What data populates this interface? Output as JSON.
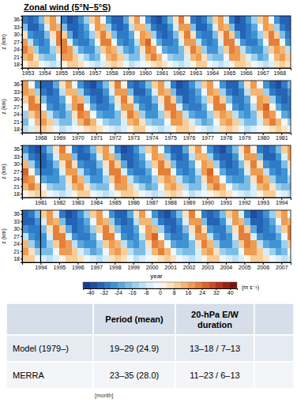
{
  "chart_data": {
    "type": "heatmap",
    "title": "Zonal wind (5°N–5°S)",
    "x_label": "year",
    "y_label": "z (km)",
    "x": [
      1952.67,
      1953,
      1953.33,
      1953.67,
      1954,
      1954.33,
      1954.67,
      1955,
      1955.33,
      1955.67,
      1956,
      1956.33,
      1956.67,
      1957,
      1957.33,
      1957.67,
      1958,
      1958.33,
      1958.67,
      1959,
      1959.33,
      1959.67,
      1960,
      1960.33,
      1960.67,
      1961,
      1961.33,
      1961.67,
      1962,
      1962.33,
      1962.67,
      1963,
      1963.33,
      1963.67,
      1964,
      1964.33,
      1964.67,
      1965,
      1965.33,
      1965.67,
      1966,
      1966.33,
      1966.67,
      1967,
      1967.33,
      1967.67,
      1968,
      1968.33,
      1968.67,
      1969,
      1969.33,
      1969.67,
      1970,
      1970.33,
      1970.67,
      1971,
      1971.33,
      1971.67,
      1972,
      1972.33,
      1972.67,
      1973,
      1973.33,
      1973.67,
      1974,
      1974.33,
      1974.67,
      1975,
      1975.33,
      1975.67,
      1976,
      1976.33,
      1976.67,
      1977,
      1977.33,
      1977.67,
      1978,
      1978.33,
      1978.67,
      1979,
      1979.33,
      1979.67,
      1980,
      1980.33,
      1980.67,
      1981,
      1981.33,
      1981.67,
      1982,
      1982.33,
      1982.67,
      1983,
      1983.33,
      1983.67,
      1984,
      1984.33,
      1984.67,
      1985,
      1985.33,
      1985.67,
      1986,
      1986.33,
      1986.67,
      1987,
      1987.33,
      1987.67,
      1988,
      1988.33,
      1988.67,
      1989,
      1989.33,
      1989.67,
      1990,
      1990.33,
      1990.67,
      1991,
      1991.33,
      1991.67,
      1992,
      1992.33,
      1992.67,
      1993,
      1993.33,
      1993.67,
      1994,
      1994.33,
      1994.67,
      1995,
      1995.33,
      1995.67,
      1996,
      1996.33,
      1996.67,
      1997,
      1997.33,
      1997.67,
      1998,
      1998.33,
      1998.67,
      1999,
      1999.33,
      1999.67,
      2000,
      2000.33,
      2000.67,
      2001,
      2001.33,
      2001.67,
      2002,
      2002.33,
      2002.67,
      2003,
      2003.33,
      2003.67,
      2004,
      2004.33,
      2004.67,
      2005,
      2005.33,
      2005.67,
      2006,
      2006.33,
      2006.67,
      2007,
      2007.33
    ],
    "y": [
      18,
      21,
      24,
      27,
      30,
      33,
      36
    ],
    "z": [
      [
        2,
        8,
        8,
        -2,
        -8,
        -10,
        -6,
        2,
        8,
        10,
        4,
        -2,
        -8,
        -12,
        -6,
        4,
        10,
        6,
        -4,
        -10,
        -8,
        -4,
        0,
        6,
        10,
        6,
        -2,
        -6,
        -10,
        -8,
        2,
        8,
        8,
        -2,
        -8,
        -10,
        -6,
        2,
        8,
        10,
        4,
        -2,
        -8,
        -12,
        -6,
        4,
        10,
        6,
        -4,
        -10,
        -8,
        -4,
        0,
        6,
        10,
        6,
        -2,
        -6,
        -10,
        -8,
        2,
        8,
        8,
        -2,
        -8,
        -10,
        -6,
        2,
        8,
        10,
        4,
        -2,
        -8,
        -12,
        -6,
        4,
        10,
        6,
        -4,
        -10,
        -8,
        -4,
        0,
        6,
        10,
        6,
        -2,
        -6,
        -10,
        -8,
        2,
        8,
        8,
        -2,
        -8,
        -10,
        -6,
        2,
        8,
        10,
        4,
        -2,
        -8,
        -12,
        -6,
        4,
        10,
        6,
        -4,
        -10,
        -8,
        -4,
        0,
        6,
        10,
        6,
        -2,
        -6,
        -10,
        -8,
        2,
        8,
        8,
        -2,
        -8,
        -10,
        -6,
        2,
        8,
        10,
        4,
        -2,
        -8,
        -12,
        -6,
        4,
        10,
        6,
        -4,
        -10,
        -8,
        -4,
        0,
        6,
        10,
        6,
        -2,
        -6,
        -10,
        -8,
        2,
        8,
        8,
        -2,
        -8,
        -10,
        -6,
        2,
        8,
        10,
        4,
        -2,
        -8,
        -12,
        -6
      ],
      [
        14,
        16,
        4,
        -14,
        -20,
        -18,
        -4,
        16,
        18,
        10,
        -8,
        -16,
        -22,
        -18,
        -2,
        12,
        18,
        8,
        -10,
        -18,
        -20,
        -6,
        14,
        20,
        14,
        -4,
        -14,
        -20,
        -20,
        -6,
        14,
        16,
        4,
        -14,
        -20,
        -18,
        -4,
        16,
        18,
        10,
        -8,
        -16,
        -22,
        -18,
        -2,
        12,
        18,
        8,
        -10,
        -18,
        -20,
        -6,
        14,
        20,
        14,
        -4,
        -14,
        -20,
        -20,
        -6,
        14,
        16,
        4,
        -14,
        -20,
        -18,
        -4,
        16,
        18,
        10,
        -8,
        -16,
        -22,
        -18,
        -2,
        12,
        18,
        8,
        -10,
        -18,
        -20,
        -6,
        14,
        20,
        14,
        -4,
        -14,
        -20,
        -20,
        -6,
        14,
        16,
        4,
        -14,
        -20,
        -18,
        -4,
        16,
        18,
        10,
        -8,
        -16,
        -22,
        -18,
        -2,
        12,
        18,
        8,
        -10,
        -18,
        -20,
        -6,
        14,
        20,
        14,
        -4,
        -14,
        -20,
        -20,
        -6,
        14,
        16,
        4,
        -14,
        -20,
        -18,
        -4,
        16,
        18,
        10,
        -8,
        -16,
        -22,
        -18,
        -2,
        12,
        18,
        8,
        -10,
        -18,
        -20,
        -6,
        14,
        20,
        14,
        -4,
        -14,
        -20,
        -20,
        -6,
        14,
        16,
        4,
        -14,
        -20,
        -18,
        -4,
        16,
        18,
        10,
        -8,
        -16,
        -22,
        -18,
        -2
      ],
      [
        20,
        12,
        -16,
        -26,
        -26,
        -16,
        8,
        22,
        16,
        -10,
        -24,
        -28,
        -26,
        -14,
        10,
        18,
        14,
        -12,
        -24,
        -28,
        -20,
        4,
        20,
        18,
        -4,
        -22,
        -26,
        -28,
        -18,
        6,
        20,
        12,
        -16,
        -26,
        -26,
        -16,
        8,
        22,
        16,
        -10,
        -24,
        -28,
        -26,
        -14,
        10,
        18,
        14,
        -12,
        -24,
        -28,
        -20,
        4,
        20,
        18,
        -4,
        -22,
        -26,
        -28,
        -18,
        6,
        20,
        12,
        -16,
        -26,
        -26,
        -16,
        8,
        22,
        16,
        -10,
        -24,
        -28,
        -26,
        -14,
        10,
        18,
        14,
        -12,
        -24,
        -28,
        -20,
        4,
        20,
        18,
        -4,
        -22,
        -26,
        -28,
        -18,
        6,
        20,
        12,
        -16,
        -26,
        -26,
        -16,
        8,
        22,
        16,
        -10,
        -24,
        -28,
        -26,
        -14,
        10,
        18,
        14,
        -12,
        -24,
        -28,
        -20,
        4,
        20,
        18,
        -4,
        -22,
        -26,
        -28,
        -18,
        6,
        20,
        12,
        -16,
        -26,
        -26,
        -16,
        8,
        22,
        16,
        -10,
        -24,
        -28,
        -26,
        -14,
        10,
        18,
        14,
        -12,
        -24,
        -28,
        -20,
        4,
        20,
        18,
        -4,
        -22,
        -26,
        -28,
        -18,
        6,
        20,
        12,
        -16,
        -26,
        -26,
        -16,
        8,
        22,
        16,
        -10,
        -24,
        -28,
        -26,
        -14,
        10
      ],
      [
        18,
        -10,
        -28,
        -30,
        -26,
        -8,
        20,
        22,
        -6,
        -26,
        -32,
        -30,
        -24,
        -4,
        22,
        20,
        -4,
        -26,
        -32,
        -28,
        -12,
        16,
        24,
        2,
        -22,
        -30,
        -32,
        -26,
        -8,
        18,
        18,
        -10,
        -28,
        -30,
        -26,
        -8,
        20,
        22,
        -6,
        -26,
        -32,
        -30,
        -24,
        -4,
        22,
        20,
        -4,
        -26,
        -32,
        -28,
        -12,
        16,
        24,
        2,
        -22,
        -30,
        -32,
        -26,
        -8,
        18,
        18,
        -10,
        -28,
        -30,
        -26,
        -8,
        20,
        22,
        -6,
        -26,
        -32,
        -30,
        -24,
        -4,
        22,
        20,
        -4,
        -26,
        -32,
        -28,
        -12,
        16,
        24,
        2,
        -22,
        -30,
        -32,
        -26,
        -8,
        18,
        18,
        -10,
        -28,
        -30,
        -26,
        -8,
        20,
        22,
        -6,
        -26,
        -32,
        -30,
        -24,
        -4,
        22,
        20,
        -4,
        -26,
        -32,
        -28,
        -12,
        16,
        24,
        2,
        -22,
        -30,
        -32,
        -26,
        -8,
        18,
        18,
        -10,
        -28,
        -30,
        -26,
        -8,
        20,
        22,
        -6,
        -26,
        -32,
        -30,
        -24,
        -4,
        22,
        20,
        -4,
        -26,
        -32,
        -28,
        -12,
        16,
        24,
        2,
        -22,
        -30,
        -32,
        -26,
        -8,
        18,
        18,
        -10,
        -28,
        -30,
        -26,
        -8,
        20,
        22,
        -6,
        -26,
        -32,
        -30,
        -24,
        -4,
        22
      ],
      [
        6,
        -26,
        -32,
        -30,
        -20,
        4,
        20,
        8,
        -22,
        -34,
        -32,
        -28,
        -16,
        8,
        22,
        10,
        -20,
        -30,
        -32,
        -24,
        0,
        18,
        12,
        -16,
        -32,
        -34,
        -30,
        -20,
        4,
        20,
        6,
        -26,
        -32,
        -30,
        -20,
        4,
        20,
        8,
        -22,
        -34,
        -32,
        -28,
        -16,
        8,
        22,
        10,
        -20,
        -30,
        -32,
        -24,
        0,
        18,
        12,
        -16,
        -32,
        -34,
        -30,
        -20,
        4,
        20,
        6,
        -26,
        -32,
        -30,
        -20,
        4,
        20,
        8,
        -22,
        -34,
        -32,
        -28,
        -16,
        8,
        22,
        10,
        -20,
        -30,
        -32,
        -24,
        0,
        18,
        12,
        -16,
        -32,
        -34,
        -30,
        -20,
        4,
        20,
        6,
        -26,
        -32,
        -30,
        -20,
        4,
        20,
        8,
        -22,
        -34,
        -32,
        -28,
        -16,
        8,
        22,
        10,
        -20,
        -30,
        -32,
        -24,
        0,
        18,
        12,
        -16,
        -32,
        -34,
        -30,
        -20,
        4,
        20,
        6,
        -26,
        -32,
        -30,
        -20,
        4,
        20,
        8,
        -22,
        -34,
        -32,
        -28,
        -16,
        8,
        22,
        10,
        -20,
        -30,
        -32,
        -24,
        0,
        18,
        12,
        -16,
        -32,
        -34,
        -30,
        -20,
        4,
        20,
        6,
        -26,
        -32,
        -30,
        -20,
        4,
        20,
        8,
        -22,
        -34,
        -32,
        -28,
        -16,
        8,
        22
      ],
      [
        -20,
        -34,
        -34,
        -28,
        -8,
        16,
        12,
        -18,
        -34,
        -36,
        -32,
        -24,
        -4,
        18,
        14,
        -16,
        -32,
        -36,
        -30,
        -12,
        14,
        14,
        -14,
        -30,
        -36,
        -34,
        -26,
        -8,
        16,
        16,
        -20,
        -34,
        -34,
        -28,
        -8,
        16,
        12,
        -18,
        -34,
        -36,
        -32,
        -24,
        -4,
        18,
        14,
        -16,
        -32,
        -36,
        -30,
        -12,
        14,
        14,
        -14,
        -30,
        -36,
        -34,
        -26,
        -8,
        16,
        16,
        -20,
        -34,
        -34,
        -28,
        -8,
        16,
        12,
        -18,
        -34,
        -36,
        -32,
        -24,
        -4,
        18,
        14,
        -16,
        -32,
        -36,
        -30,
        -12,
        14,
        14,
        -14,
        -30,
        -36,
        -34,
        -26,
        -8,
        16,
        16,
        -20,
        -34,
        -34,
        -28,
        -8,
        16,
        12,
        -18,
        -34,
        -36,
        -32,
        -24,
        -4,
        18,
        14,
        -16,
        -32,
        -36,
        -30,
        -12,
        14,
        14,
        -14,
        -30,
        -36,
        -34,
        -26,
        -8,
        16,
        16,
        -20,
        -34,
        -34,
        -28,
        -8,
        16,
        12,
        -18,
        -34,
        -36,
        -32,
        -24,
        -4,
        18,
        14,
        -16,
        -32,
        -36,
        -30,
        -12,
        14,
        14,
        -14,
        -30,
        -36,
        -34,
        -26,
        -8,
        16,
        16,
        -20,
        -34,
        -34,
        -28,
        -8,
        16,
        12,
        -18,
        -34,
        -36,
        -32,
        -24,
        -4,
        18,
        14
      ],
      [
        -30,
        -36,
        -32,
        -20,
        8,
        16,
        -6,
        -30,
        -38,
        -34,
        -28,
        -14,
        10,
        18,
        -4,
        -28,
        -36,
        -34,
        -24,
        4,
        18,
        -2,
        -26,
        -36,
        -38,
        -30,
        -18,
        6,
        20,
        0,
        -30,
        -36,
        -32,
        -20,
        8,
        16,
        -6,
        -30,
        -38,
        -34,
        -28,
        -14,
        10,
        18,
        -4,
        -28,
        -36,
        -34,
        -24,
        4,
        18,
        -2,
        -26,
        -36,
        -38,
        -30,
        -18,
        6,
        20,
        0,
        -30,
        -36,
        -32,
        -20,
        8,
        16,
        -6,
        -30,
        -38,
        -34,
        -28,
        -14,
        10,
        18,
        -4,
        -28,
        -36,
        -34,
        -24,
        4,
        18,
        -2,
        -26,
        -36,
        -38,
        -30,
        -18,
        6,
        20,
        0,
        -30,
        -36,
        -32,
        -20,
        8,
        16,
        -6,
        -30,
        -38,
        -34,
        -28,
        -14,
        10,
        18,
        -4,
        -28,
        -36,
        -34,
        -24,
        4,
        18,
        -2,
        -26,
        -36,
        -38,
        -30,
        -18,
        6,
        20,
        0,
        -30,
        -36,
        -32,
        -20,
        8,
        16,
        -6,
        -30,
        -38,
        -34,
        -28,
        -14,
        10,
        18,
        -4,
        -28,
        -36,
        -34,
        -24,
        4,
        18,
        -2,
        -26,
        -36,
        -38,
        -30,
        -18,
        6,
        20,
        0,
        -30,
        -36,
        -32,
        -20,
        8,
        16,
        -6,
        -30,
        -38,
        -34,
        -28,
        -14,
        10,
        18,
        -4
      ]
    ],
    "ylim": [
      16.5,
      37.5
    ],
    "yticks": [
      18,
      21,
      24,
      27,
      30,
      33,
      36
    ],
    "panels": [
      {
        "xlim": [
          1952.67,
          1968.67
        ],
        "xticks": [
          1953,
          1954,
          1955,
          1956,
          1957,
          1958,
          1959,
          1960,
          1961,
          1962,
          1963,
          1964,
          1965,
          1966,
          1967,
          1968
        ],
        "divider": 1955
      },
      {
        "xlim": [
          1967,
          1981.5
        ],
        "xticks": [
          1968,
          1969,
          1970,
          1971,
          1972,
          1973,
          1974,
          1975,
          1976,
          1977,
          1978,
          1979,
          1980,
          1981
        ],
        "divider": 1968
      },
      {
        "xlim": [
          1980,
          1994.5
        ],
        "xticks": [
          1981,
          1982,
          1983,
          1984,
          1985,
          1986,
          1987,
          1988,
          1989,
          1990,
          1991,
          1992,
          1993,
          1994
        ],
        "divider": 1981
      },
      {
        "xlim": [
          1993,
          2007.5
        ],
        "xticks": [
          1994,
          1995,
          1996,
          1997,
          1998,
          1999,
          2000,
          2001,
          2002,
          2003,
          2004,
          2005,
          2006,
          2007
        ],
        "divider": 1994
      }
    ],
    "colorbar": {
      "range": [
        -44,
        44
      ],
      "ticks": [
        -40,
        -32,
        -24,
        -16,
        -8,
        0,
        8,
        16,
        24,
        32,
        40
      ],
      "colors": [
        "#1a3a8c",
        "#1f4ea3",
        "#2563b5",
        "#2f7bc6",
        "#3f93d3",
        "#5aa8dd",
        "#7bbde6",
        "#9dd0ee",
        "#bde0f4",
        "#d9eef9",
        "#eef7fc",
        "#fdf3e3",
        "#fbe1bf",
        "#f8cd98",
        "#f4b673",
        "#ee9c52",
        "#e5803a",
        "#d9652a",
        "#c84b22",
        "#b3331c",
        "#9b2016",
        "#7f1210"
      ],
      "label": "(m s⁻¹)"
    }
  },
  "table": {
    "columns": [
      "Period (mean)",
      "20-hPa E/W duration"
    ],
    "rows": [
      {
        "label": "Model (1979–)",
        "cells": [
          "19–29 (24.9)",
          "13–18 / 7–13"
        ]
      },
      {
        "label": "MERRA",
        "cells": [
          "23–35 (28.0)",
          "11–23 / 6–13"
        ]
      }
    ],
    "note": "[month]"
  }
}
